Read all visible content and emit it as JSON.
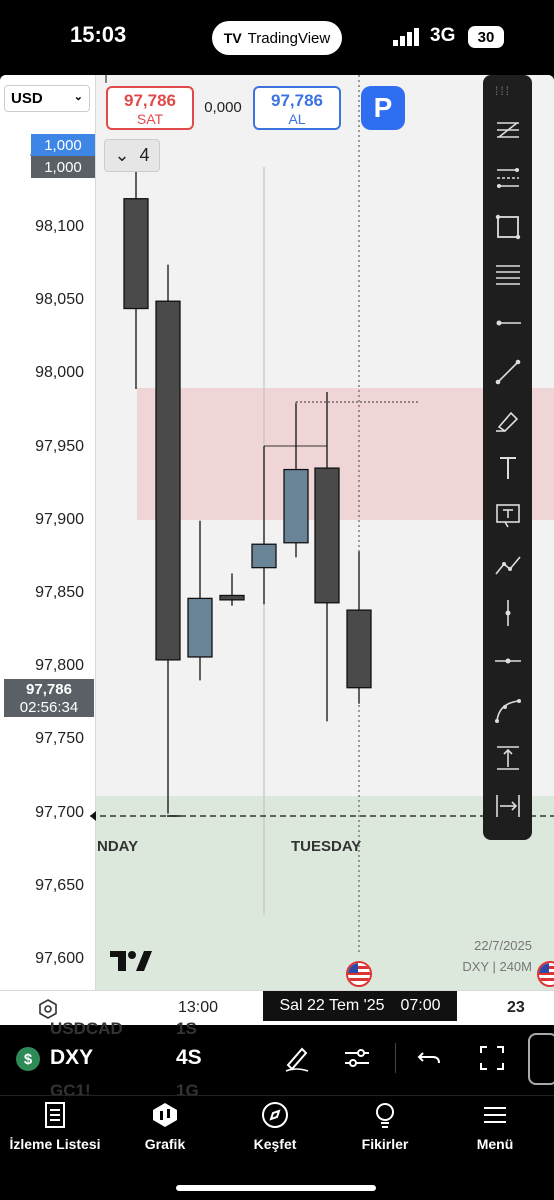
{
  "status": {
    "time": "15:03",
    "app_pill": "TradingView",
    "network": "3G",
    "battery": "30"
  },
  "chart": {
    "currency": "USD",
    "sell_price": "97,786",
    "sell_label": "SAT",
    "buy_price": "97,786",
    "buy_label": "AL",
    "spread": "0,000",
    "qty_top": "1,000",
    "qty_bottom": "1,000",
    "collapse_count": "4",
    "current_price": "97,786",
    "countdown": "02:56:34",
    "price_levels": [
      "98,100",
      "98,050",
      "98,000",
      "97,950",
      "97,900",
      "97,850",
      "97,800",
      "97,750",
      "97,700",
      "97,650",
      "97,600"
    ],
    "day_labels": [
      "NDAY",
      "TUESDAY"
    ],
    "date_stamp": "22/7/2025",
    "symbol_interval": "DXY | 240M",
    "time_labels": [
      "13:00",
      "23"
    ],
    "cursor_date": "Sal 22 Tem '25",
    "cursor_time": "07:00",
    "candles": [
      {
        "o": 98.12,
        "h": 98.14,
        "l": 97.99,
        "c": 98.045
      },
      {
        "o": 98.05,
        "h": 98.075,
        "l": 97.7,
        "c": 97.805
      },
      {
        "o": 97.807,
        "h": 97.9,
        "l": 97.791,
        "c": 97.847
      },
      {
        "o": 97.849,
        "h": 97.864,
        "l": 97.842,
        "c": 97.846
      },
      {
        "o": 97.868,
        "h": 97.951,
        "l": 97.843,
        "c": 97.884
      },
      {
        "o": 97.885,
        "h": 97.98,
        "l": 97.875,
        "c": 97.935
      },
      {
        "o": 97.936,
        "h": 97.988,
        "l": 97.763,
        "c": 97.844
      },
      {
        "o": 97.839,
        "h": 97.879,
        "l": 97.775,
        "c": 97.786
      }
    ]
  },
  "toolbar": [
    "trend-lines-icon",
    "fib-icon",
    "rectangle-icon",
    "lines-group-icon",
    "horizontal-ray-icon",
    "trend-line-icon",
    "brush-icon",
    "text-icon",
    "text-box-icon",
    "path-icon",
    "vertical-line-icon",
    "horizontal-line-icon",
    "curve-icon",
    "price-range-icon",
    "date-range-icon"
  ],
  "symbol_row": {
    "ghost_top": [
      "USDCAD",
      "1S"
    ],
    "ghost_bottom": [
      "GC1!",
      "1G"
    ],
    "symbol": "DXY",
    "interval": "4S"
  },
  "tabs": [
    {
      "label": "İzleme Listesi",
      "icon": "watchlist-icon"
    },
    {
      "label": "Grafik",
      "icon": "chart-icon"
    },
    {
      "label": "Keşfet",
      "icon": "compass-icon"
    },
    {
      "label": "Fikirler",
      "icon": "lightbulb-icon"
    },
    {
      "label": "Menü",
      "icon": "menu-icon"
    }
  ]
}
